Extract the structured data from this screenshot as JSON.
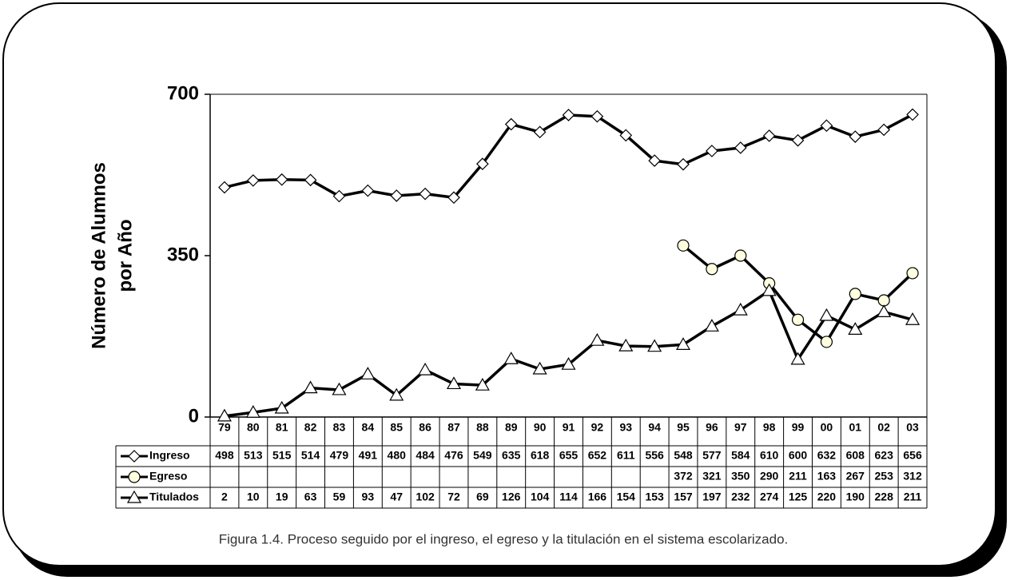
{
  "chart_data": {
    "type": "line",
    "y_label": [
      "Número de Alumnos",
      "por Año"
    ],
    "caption": "Figura 1.4. Proceso seguido por el ingreso, el egreso y la titulación en el sistema escolarizado.",
    "categories": [
      "79",
      "80",
      "81",
      "82",
      "83",
      "84",
      "85",
      "86",
      "87",
      "88",
      "89",
      "90",
      "91",
      "92",
      "93",
      "94",
      "95",
      "96",
      "97",
      "98",
      "99",
      "00",
      "01",
      "02",
      "03"
    ],
    "series": [
      {
        "name": "Ingreso",
        "color": "#000000",
        "marker": "diamond",
        "values": [
          498,
          513,
          515,
          514,
          479,
          491,
          480,
          484,
          476,
          549,
          635,
          618,
          655,
          652,
          611,
          556,
          548,
          577,
          584,
          610,
          600,
          632,
          608,
          623,
          656
        ]
      },
      {
        "name": "Egreso",
        "color": "#000000",
        "marker": "circle",
        "values": [
          null,
          null,
          null,
          null,
          null,
          null,
          null,
          null,
          null,
          null,
          null,
          null,
          null,
          null,
          null,
          null,
          372,
          321,
          350,
          290,
          211,
          163,
          267,
          253,
          312
        ]
      },
      {
        "name": "Titulados",
        "color": "#000000",
        "marker": "triangle",
        "values": [
          2,
          10,
          19,
          63,
          59,
          93,
          47,
          102,
          72,
          69,
          126,
          104,
          114,
          166,
          154,
          153,
          157,
          197,
          232,
          274,
          125,
          220,
          190,
          228,
          211
        ]
      }
    ],
    "ylim": [
      0,
      700
    ],
    "yticks": [
      0,
      350,
      700
    ],
    "grid": false
  }
}
